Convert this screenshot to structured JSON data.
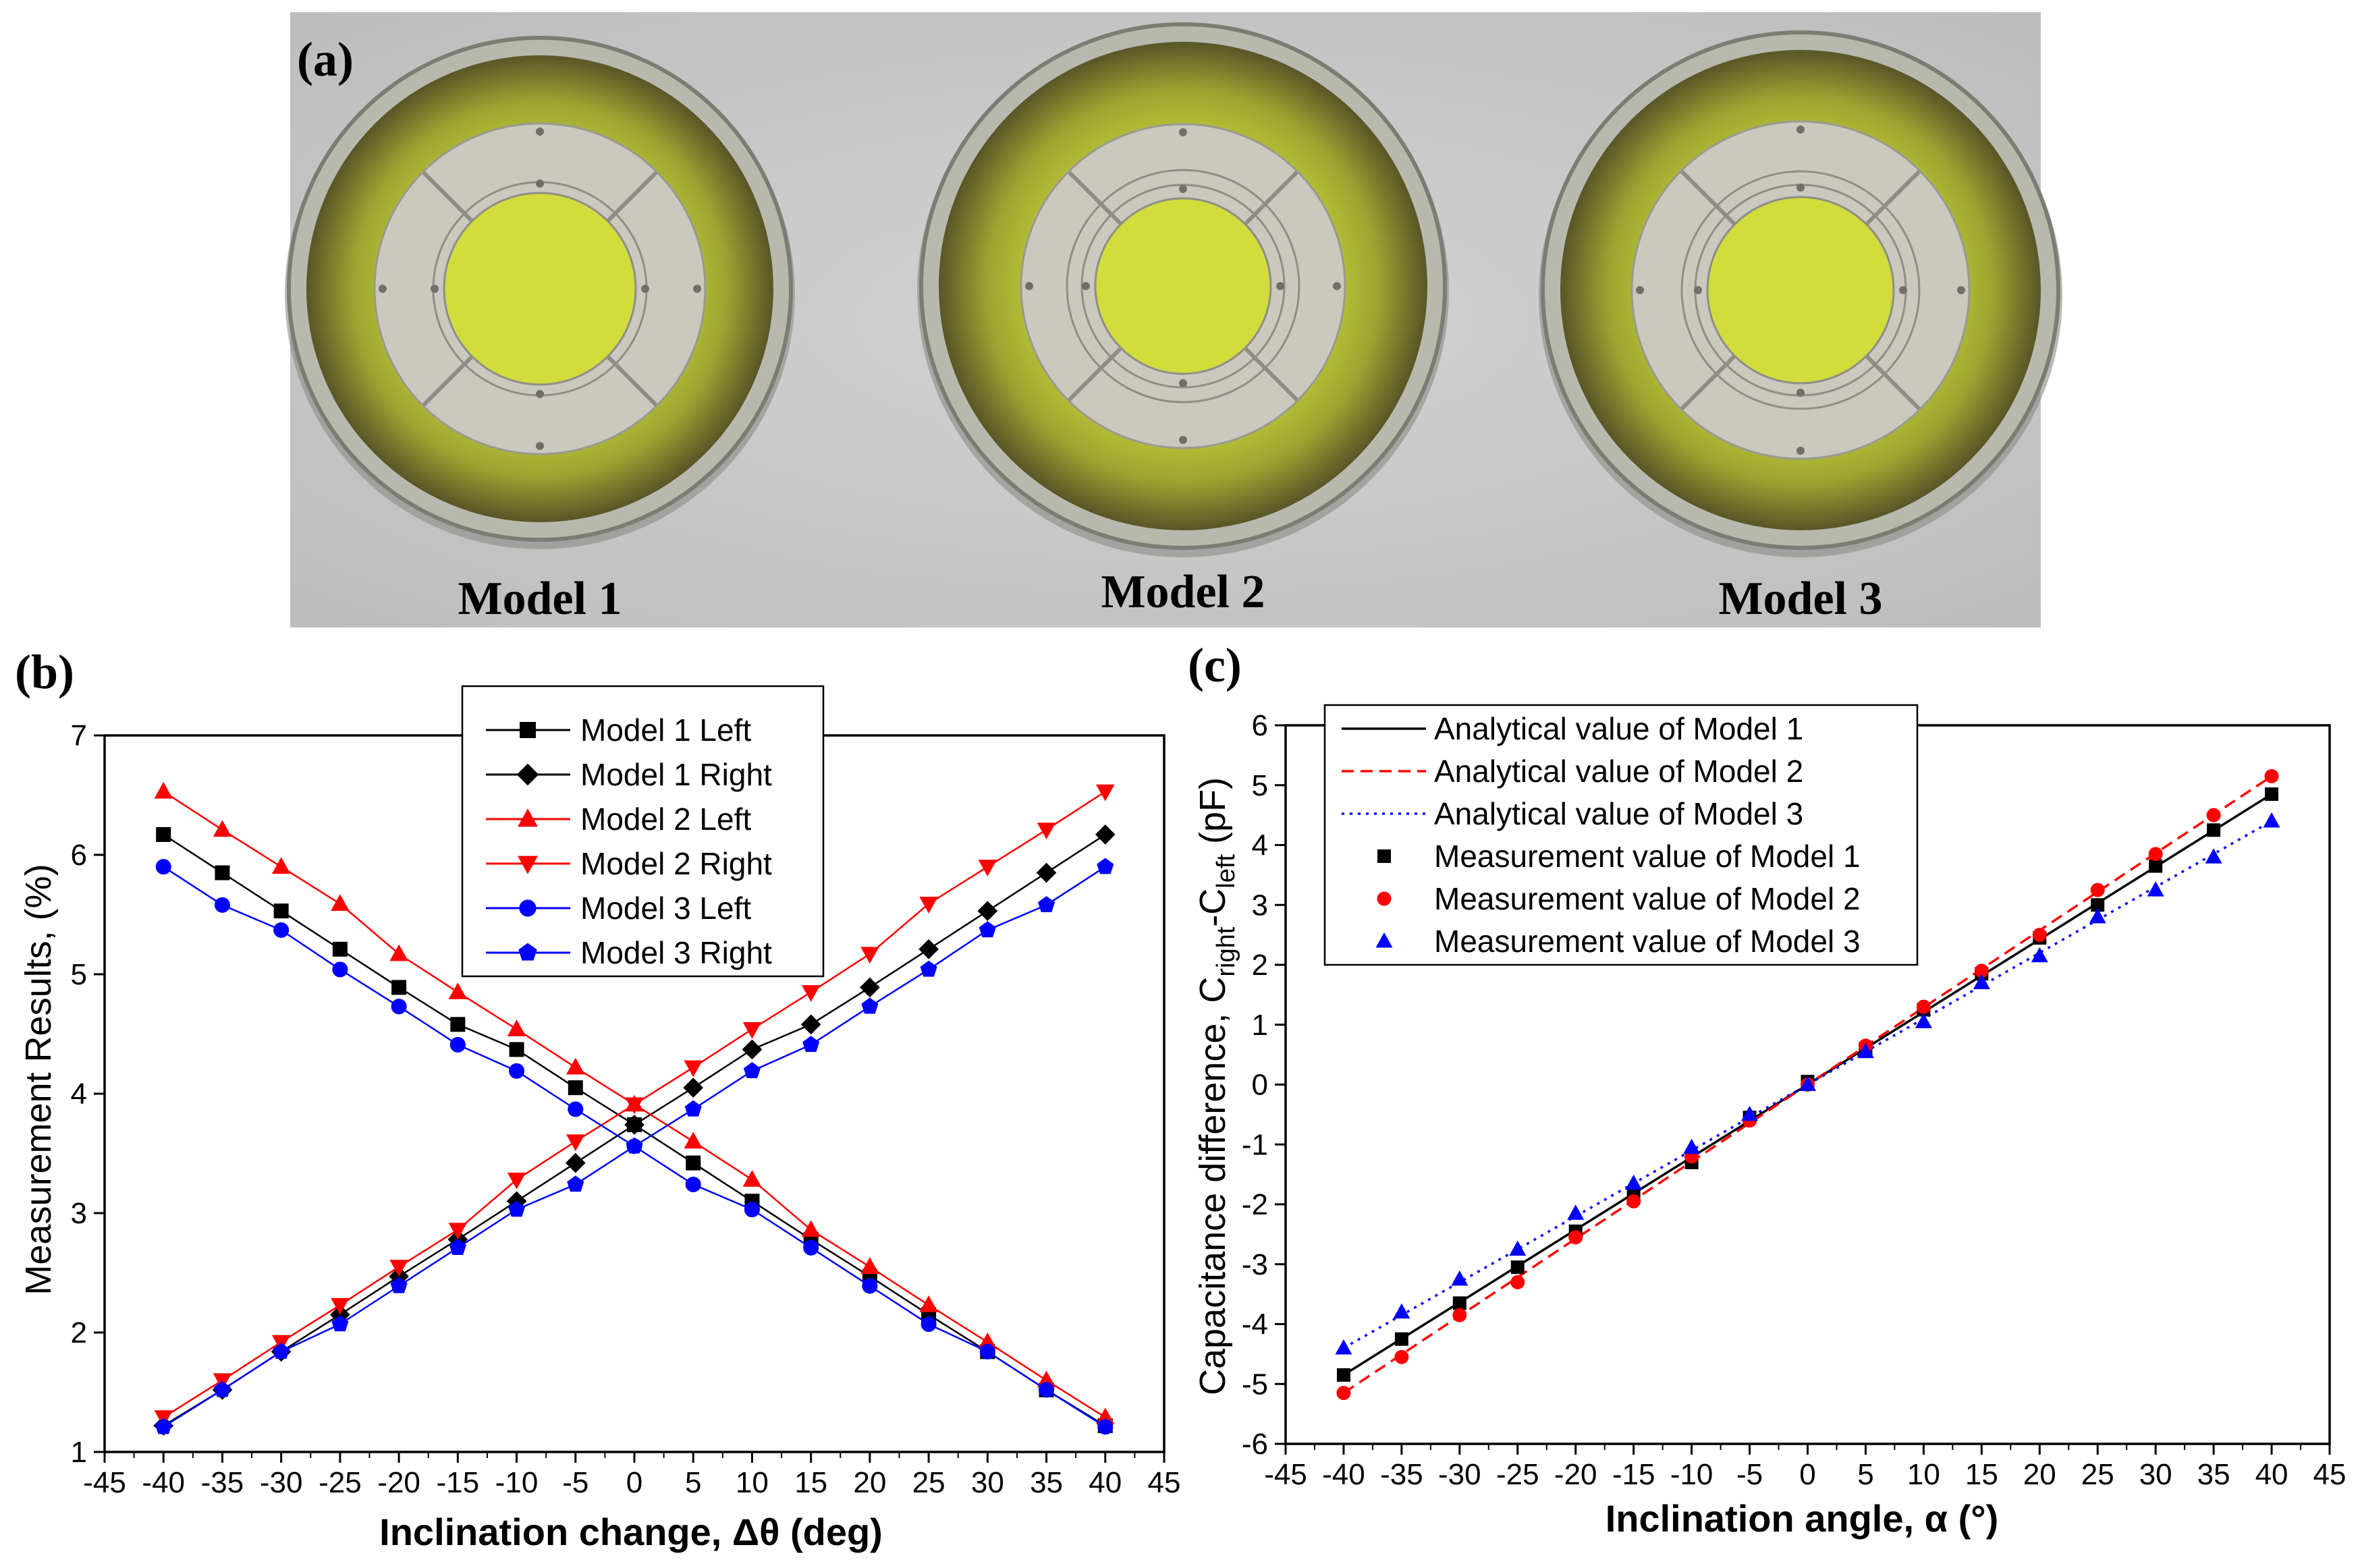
{
  "panels": {
    "a": "(a)",
    "b": "(b)",
    "c": "(c)"
  },
  "photo": {
    "models": [
      "Model 1",
      "Model 2",
      "Model 3"
    ],
    "colors": {
      "background": "#c9c9c9",
      "metal": "#b8b9ae",
      "board_outer": "#5f5a2a",
      "board_inner": "#c7d33a",
      "core": "#d2dc3c"
    }
  },
  "chart_data": [
    {
      "type": "line",
      "id": "b",
      "xlabel": "Inclination change, Δθ (deg)",
      "ylabel": "Measurement Results, (%)",
      "xlim": [
        -45,
        45
      ],
      "ylim": [
        1,
        7
      ],
      "xticks": [
        -45,
        -40,
        -35,
        -30,
        -25,
        -20,
        -15,
        -10,
        -5,
        0,
        5,
        10,
        15,
        20,
        25,
        30,
        35,
        40,
        45
      ],
      "yticks": [
        1,
        2,
        3,
        4,
        5,
        6,
        7
      ],
      "legend_position": "top-center",
      "x": [
        -40,
        -35,
        -30,
        -25,
        -20,
        -15,
        -10,
        -5,
        0,
        5,
        10,
        15,
        20,
        25,
        30,
        35,
        40
      ],
      "series": [
        {
          "name": "Model 1 Left",
          "color": "#000000",
          "marker": "square",
          "values": [
            6.17,
            5.85,
            5.53,
            5.21,
            4.89,
            4.58,
            4.37,
            4.05,
            3.74,
            3.42,
            3.1,
            2.78,
            2.47,
            2.15,
            1.84,
            1.52,
            1.22
          ]
        },
        {
          "name": "Model 1 Right",
          "color": "#000000",
          "marker": "diamond",
          "values": [
            1.22,
            1.52,
            1.84,
            2.15,
            2.47,
            2.78,
            3.1,
            3.42,
            3.74,
            4.05,
            4.37,
            4.58,
            4.89,
            5.21,
            5.53,
            5.85,
            6.17
          ]
        },
        {
          "name": "Model 2 Left",
          "color": "#ff0000",
          "marker": "triangle-up",
          "values": [
            6.53,
            6.21,
            5.9,
            5.59,
            5.17,
            4.85,
            4.54,
            4.22,
            3.91,
            3.6,
            3.28,
            2.86,
            2.55,
            2.23,
            1.92,
            1.6,
            1.29
          ]
        },
        {
          "name": "Model 2 Right",
          "color": "#ff0000",
          "marker": "triangle-down",
          "values": [
            1.29,
            1.6,
            1.92,
            2.23,
            2.55,
            2.86,
            3.28,
            3.6,
            3.91,
            4.22,
            4.54,
            4.85,
            5.17,
            5.59,
            5.9,
            6.21,
            6.53
          ]
        },
        {
          "name": "Model 3 Left",
          "color": "#0000ff",
          "marker": "circle",
          "values": [
            5.9,
            5.58,
            5.37,
            5.04,
            4.73,
            4.41,
            4.19,
            3.87,
            3.56,
            3.24,
            3.03,
            2.71,
            2.39,
            2.07,
            1.84,
            1.52,
            1.21
          ]
        },
        {
          "name": "Model 3 Right",
          "color": "#0000ff",
          "marker": "pentagon",
          "values": [
            1.21,
            1.52,
            1.84,
            2.07,
            2.39,
            2.71,
            3.03,
            3.24,
            3.56,
            3.87,
            4.19,
            4.41,
            4.73,
            5.04,
            5.37,
            5.58,
            5.9
          ]
        }
      ]
    },
    {
      "type": "scatter",
      "id": "c",
      "xlabel": "Inclination angle, α (°)",
      "ylabel_parts": {
        "main": "Capacitance difference, C",
        "sub1": "right",
        "mid": "-C",
        "sub2": "left",
        "end": " (pF)"
      },
      "xlim": [
        -45,
        45
      ],
      "ylim": [
        -6,
        6
      ],
      "xticks": [
        -45,
        -40,
        -35,
        -30,
        -25,
        -20,
        -15,
        -10,
        -5,
        0,
        5,
        10,
        15,
        20,
        25,
        30,
        35,
        40,
        45
      ],
      "yticks": [
        -6,
        -5,
        -4,
        -3,
        -2,
        -1,
        0,
        1,
        2,
        3,
        4,
        5,
        6
      ],
      "legend_position": "top-left",
      "lines": [
        {
          "name": "Analytical value of Model 1",
          "color": "#000000",
          "style": "solid",
          "x": [
            -40,
            40
          ],
          "values": [
            -4.85,
            4.85
          ]
        },
        {
          "name": "Analytical value of Model 2",
          "color": "#ff0000",
          "style": "dashed",
          "x": [
            -40,
            40
          ],
          "values": [
            -5.15,
            5.15
          ]
        },
        {
          "name": "Analytical value of Model 3",
          "color": "#0000ff",
          "style": "dotted",
          "x": [
            -40,
            40
          ],
          "values": [
            -4.4,
            4.4
          ]
        }
      ],
      "x": [
        -40,
        -35,
        -30,
        -25,
        -20,
        -15,
        -10,
        -5,
        0,
        5,
        10,
        15,
        20,
        25,
        30,
        35,
        40
      ],
      "series": [
        {
          "name": "Measurement value of Model 1",
          "color": "#000000",
          "marker": "square",
          "values": [
            -4.85,
            -4.25,
            -3.65,
            -3.05,
            -2.45,
            -1.85,
            -1.3,
            -0.55,
            0.05,
            0.6,
            1.25,
            1.85,
            2.45,
            3.0,
            3.65,
            4.25,
            4.85
          ]
        },
        {
          "name": "Measurement value of Model 2",
          "color": "#ff0000",
          "marker": "circle",
          "values": [
            -5.15,
            -4.55,
            -3.85,
            -3.3,
            -2.55,
            -1.95,
            -1.2,
            -0.6,
            0.0,
            0.65,
            1.3,
            1.9,
            2.5,
            3.25,
            3.85,
            4.5,
            5.15
          ]
        },
        {
          "name": "Measurement value of Model 3",
          "color": "#0000ff",
          "marker": "triangle-up",
          "values": [
            -4.4,
            -3.8,
            -3.25,
            -2.75,
            -2.15,
            -1.65,
            -1.05,
            -0.5,
            0.0,
            0.55,
            1.05,
            1.7,
            2.15,
            2.8,
            3.25,
            3.8,
            4.4
          ]
        }
      ]
    }
  ]
}
